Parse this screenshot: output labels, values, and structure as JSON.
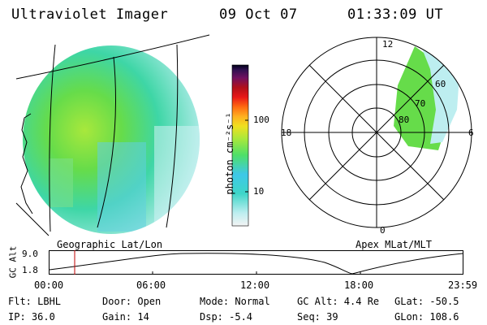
{
  "header": {
    "instrument": "Ultraviolet Imager",
    "date": "09 Oct 07",
    "time": "01:33:09 UT"
  },
  "colorbar": {
    "unit_label": "photon cm⁻²s⁻¹",
    "ticks": [
      "100",
      "10"
    ],
    "scale": "log"
  },
  "polar_plot": {
    "clock_labels": {
      "top": "12",
      "left": "18",
      "right": "6",
      "bottom": "0"
    },
    "lat_labels": [
      "60",
      "70",
      "80"
    ],
    "caption": "Apex MLat/MLT"
  },
  "geo_plot": {
    "caption": "Geographic Lat/Lon"
  },
  "altitude_panel": {
    "axis_label": "GC Alt",
    "ytick_top": "9.0",
    "ytick_bottom": "1.8",
    "time_ticks": [
      "00:00",
      "06:00",
      "12:00",
      "18:00",
      "23:59"
    ]
  },
  "status": {
    "filter": "Flt: LBHL",
    "ip": "IP: 36.0",
    "door": "Door: Open",
    "gain": "Gain: 14",
    "mode": "Mode: Normal",
    "dsp": "Dsp:   -5.4",
    "gc_alt": "GC Alt: 4.4 Re",
    "seq": "Seq: 39",
    "glat": "GLat: -50.5",
    "glon": "GLon: 108.6"
  }
}
